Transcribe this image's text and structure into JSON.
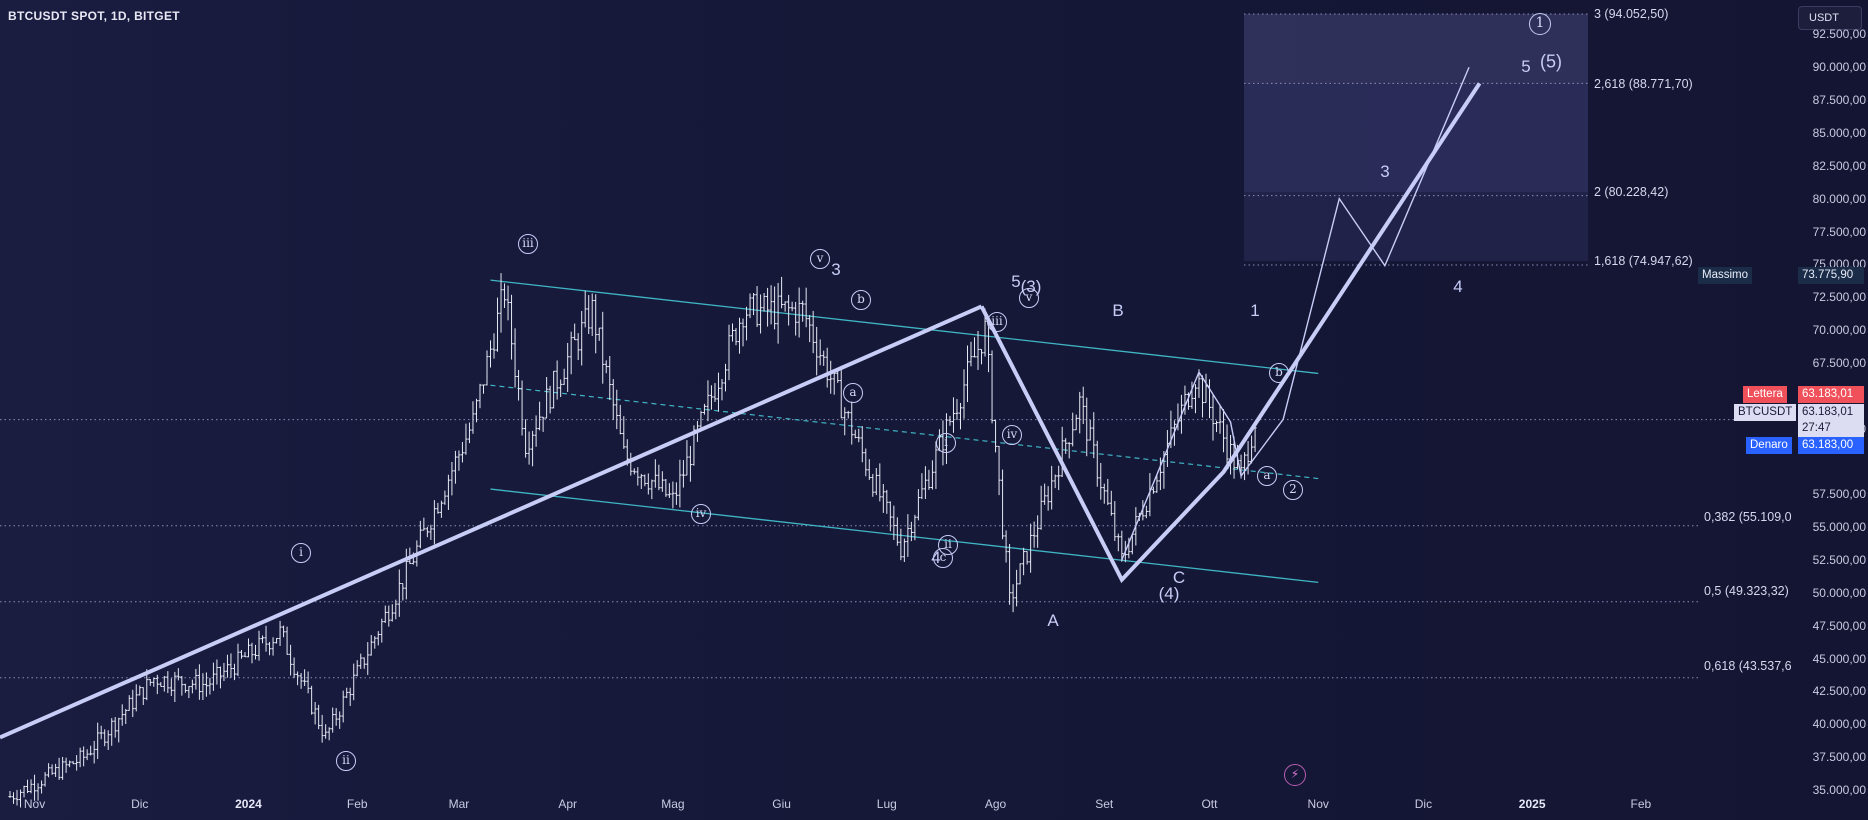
{
  "chart_title": "BTCUSDT SPOT, 1D, BITGET",
  "currency_button": "USDT",
  "price_axis": [
    "92.500,00",
    "90.000,00",
    "87.500,00",
    "85.000,00",
    "82.500,00",
    "80.000,00",
    "77.500,00",
    "75.000,00",
    "72.500,00",
    "70.000,00",
    "67.500,00",
    "62.500,00",
    "57.500,00",
    "55.000,00",
    "52.500,00",
    "50.000,00",
    "47.500,00",
    "45.000,00",
    "42.500,00",
    "40.000,00",
    "37.500,00",
    "35.000,00"
  ],
  "time_axis": [
    {
      "label": "Nov",
      "bold": false
    },
    {
      "label": "Dic",
      "bold": false
    },
    {
      "label": "2024",
      "bold": true
    },
    {
      "label": "Feb",
      "bold": false
    },
    {
      "label": "Mar",
      "bold": false
    },
    {
      "label": "Apr",
      "bold": false
    },
    {
      "label": "Mag",
      "bold": false
    },
    {
      "label": "Giu",
      "bold": false
    },
    {
      "label": "Lug",
      "bold": false
    },
    {
      "label": "Ago",
      "bold": false
    },
    {
      "label": "Set",
      "bold": false
    },
    {
      "label": "Ott",
      "bold": false
    },
    {
      "label": "Nov",
      "bold": false
    },
    {
      "label": "Dic",
      "bold": false
    },
    {
      "label": "2025",
      "bold": true
    },
    {
      "label": "Feb",
      "bold": false
    }
  ],
  "tags": {
    "massimo_label": "Massimo",
    "massimo_value": "73.775,90",
    "lettera_label": "Lettera",
    "lettera_value": "63.183,01",
    "symbol_label": "BTCUSDT",
    "symbol_value": "63.183,01",
    "countdown": "27:47",
    "denaro_label": "Denaro",
    "denaro_value": "63.183,00"
  },
  "fib_levels": {
    "upper": [
      {
        "text": "3 (94.052,50)"
      },
      {
        "text": "2,618 (88.771,70)"
      },
      {
        "text": "2 (80.228,42)"
      },
      {
        "text": "1,618 (74.947,62)"
      }
    ],
    "lower": [
      {
        "text": "0,382 (55.109,0"
      },
      {
        "text": "0,5 (49.323,32)"
      },
      {
        "text": "0,618 (43.537,6"
      }
    ]
  },
  "waves": {
    "circled": [
      "1",
      "i",
      "ii",
      "iii",
      "iv",
      "v",
      "b",
      "a",
      "iii",
      "iv",
      "i",
      "ii",
      "c",
      "v",
      "b",
      "a",
      "2"
    ],
    "plain": [
      "(5)",
      "5",
      "3",
      "4",
      "5",
      "(3)",
      "B",
      "1",
      "A",
      "C",
      "(4)",
      "3",
      "4",
      "4"
    ]
  },
  "colors": {
    "background": "#131532",
    "candles": "#e6e8f4",
    "wave_line": "#c7cdf6",
    "channel": "#3fb5c4",
    "lettera": "#f0505a",
    "denaro": "#2962ff",
    "fib_zone": "#3a3c6c"
  },
  "chart_data": {
    "type": "line",
    "title": "BTCUSDT SPOT, 1D, BITGET",
    "y_range": [
      34000,
      94500
    ],
    "x_range": [
      "2023-10-25",
      "2025-02-28"
    ],
    "last_price": 63183.01,
    "series": [
      {
        "name": "BTCUSDT",
        "values": [
          [
            "2023-10-25",
            34500
          ],
          [
            "2023-11-15",
            37500
          ],
          [
            "2023-12-05",
            43500
          ],
          [
            "2023-12-20",
            43000
          ],
          [
            "2024-01-10",
            47000
          ],
          [
            "2024-01-23",
            39000
          ],
          [
            "2024-02-15",
            51500
          ],
          [
            "2024-03-05",
            63000
          ],
          [
            "2024-03-14",
            73000
          ],
          [
            "2024-03-20",
            61500
          ],
          [
            "2024-04-08",
            71500
          ],
          [
            "2024-04-17",
            60500
          ],
          [
            "2024-05-01",
            57000
          ],
          [
            "2024-05-21",
            71500
          ],
          [
            "2024-06-07",
            71500
          ],
          [
            "2024-07-05",
            53500
          ],
          [
            "2024-07-29",
            70000
          ],
          [
            "2024-08-05",
            49300
          ],
          [
            "2024-08-25",
            64500
          ],
          [
            "2024-09-06",
            52500
          ],
          [
            "2024-09-27",
            66500
          ],
          [
            "2024-10-10",
            58900
          ],
          [
            "2024-10-14",
            63183
          ]
        ]
      }
    ]
  }
}
